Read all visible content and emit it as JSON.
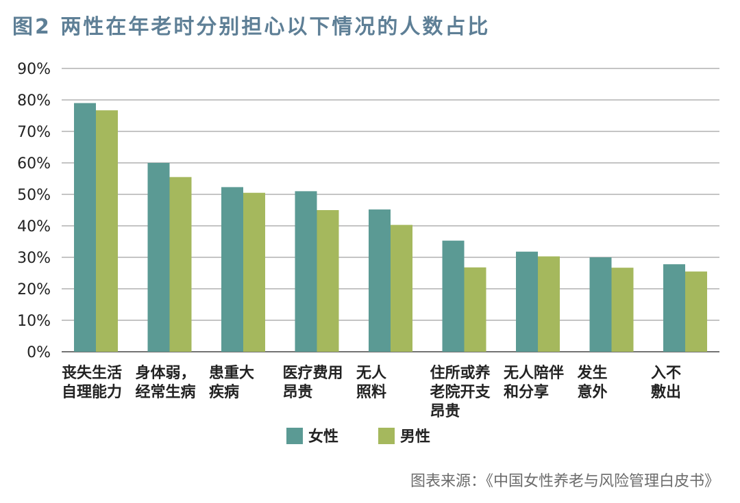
{
  "chart_data": {
    "type": "bar",
    "title": "图2 两性在年老时分别担心以下情况的人数占比",
    "categories": [
      [
        "丧失生活",
        "自理能力"
      ],
      [
        "身体弱，",
        "经常生病"
      ],
      [
        "患重大",
        "疾病"
      ],
      [
        "医疗费用",
        "昂贵"
      ],
      [
        "无人",
        "照料"
      ],
      [
        "住所或养",
        "老院开支",
        "昂贵"
      ],
      [
        "无人陪伴",
        "和分享"
      ],
      [
        "发生",
        "意外"
      ],
      [
        "入不",
        "敷出"
      ]
    ],
    "series": [
      {
        "name": "女性",
        "color": "#5b9a94",
        "values": [
          79,
          60,
          52.3,
          51,
          45.2,
          35.3,
          31.8,
          30,
          27.8
        ]
      },
      {
        "name": "男性",
        "color": "#a5b85d",
        "values": [
          76.7,
          55.5,
          50.5,
          45,
          40.3,
          26.8,
          30.3,
          26.7,
          25.5
        ]
      }
    ],
    "yticks": [
      "0%",
      "10%",
      "20%",
      "30%",
      "40%",
      "50%",
      "60%",
      "70%",
      "80%",
      "90%"
    ],
    "ylim": [
      0,
      90
    ],
    "grid": true,
    "legend_position": "bottom"
  },
  "source": "图表来源：《中国女性养老与风险管理白皮书》"
}
